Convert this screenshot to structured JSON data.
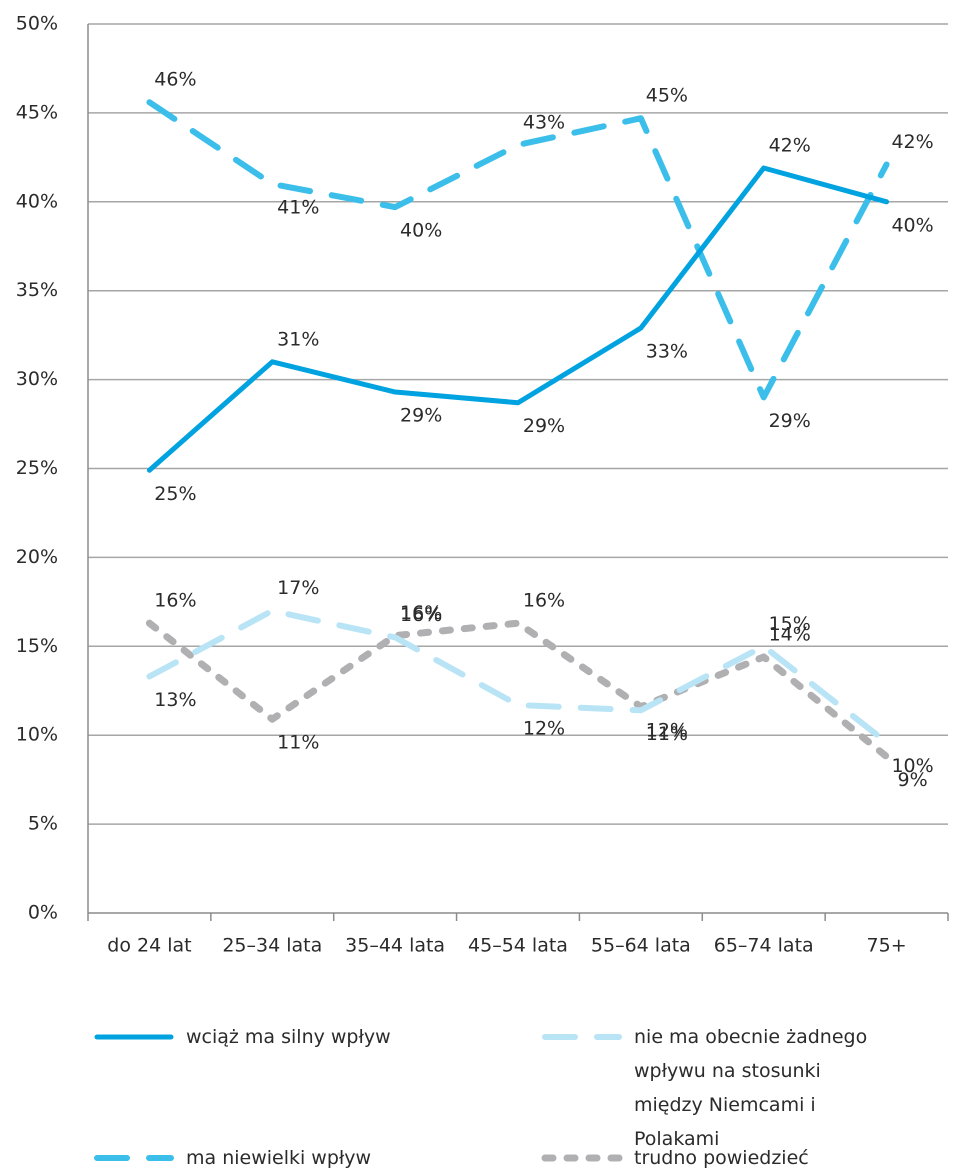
{
  "chart_data": {
    "type": "line",
    "categories": [
      "do 24 lat",
      "25–34 lata",
      "35–44 lata",
      "45–54 lata",
      "55–64 lata",
      "65–74 lata",
      "75+"
    ],
    "series": [
      {
        "name": "wciąż ma silny wpływ",
        "color": "#00a3e0",
        "style": "solid",
        "values": [
          24.9,
          31.0,
          29.3,
          28.7,
          32.9,
          41.9,
          40.0
        ],
        "value_labels": [
          "25%",
          "31%",
          "29%",
          "29%",
          "33%",
          "42%",
          "40%"
        ]
      },
      {
        "name": "ma niewielki wpływ",
        "color": "#3bbfea",
        "style": "dashed",
        "values": [
          45.6,
          41.0,
          39.7,
          43.2,
          44.7,
          29.0,
          42.1
        ],
        "value_labels": [
          "46%",
          "41%",
          "40%",
          "43%",
          "45%",
          "29%",
          "42%"
        ]
      },
      {
        "name": "nie ma obecnie żadnego wpływu na stosunki między Niemcami i Polakami",
        "color": "#b8e4f6",
        "style": "dashed",
        "values": [
          13.3,
          17.0,
          15.5,
          11.7,
          11.4,
          15.0,
          9.6
        ],
        "value_labels": [
          "13%",
          "17%",
          "16%",
          "12%",
          "11%",
          "15%",
          "10%"
        ]
      },
      {
        "name": "trudno powiedzieć",
        "color": "#b0b0b3",
        "style": "dotted",
        "values": [
          16.3,
          10.9,
          15.6,
          16.3,
          11.6,
          14.4,
          8.8
        ],
        "value_labels": [
          "16%",
          "11%",
          "16%",
          "16%",
          "12%",
          "14%",
          "9%"
        ]
      }
    ],
    "ylim": [
      0,
      50
    ],
    "yticks": [
      {
        "value": 0,
        "label": "0%"
      },
      {
        "value": 5,
        "label": "5%"
      },
      {
        "value": 10,
        "label": "10%"
      },
      {
        "value": 15,
        "label": "15%"
      },
      {
        "value": 20,
        "label": "20%"
      },
      {
        "value": 25,
        "label": "25%"
      },
      {
        "value": 30,
        "label": "30%"
      },
      {
        "value": 35,
        "label": "35%"
      },
      {
        "value": 40,
        "label": "40%"
      },
      {
        "value": 45,
        "label": "45%"
      },
      {
        "value": 50,
        "label": "50%"
      }
    ],
    "grid": true
  }
}
